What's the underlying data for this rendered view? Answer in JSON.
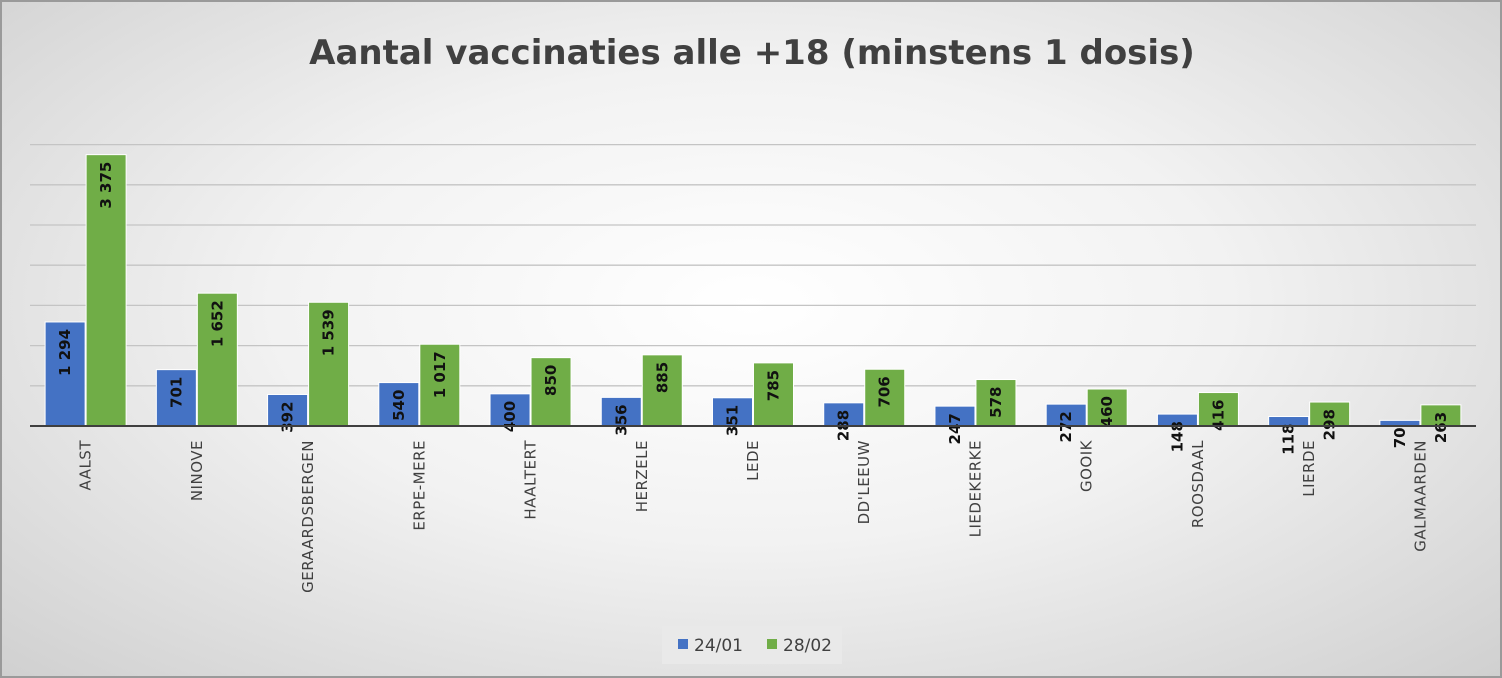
{
  "chart_data": {
    "type": "bar",
    "title": "Aantal vaccinaties alle +18 (minstens 1 dosis)",
    "xlabel": "",
    "ylabel": "",
    "ylim": [
      0,
      3500
    ],
    "grid": true,
    "legend_position": "bottom",
    "categories": [
      "AALST",
      "NINOVE",
      "GERAARDSBERGEN",
      "ERPE-MERE",
      "HAALTERT",
      "HERZELE",
      "LEDE",
      "DD'LEEUW",
      "LIEDEKERKE",
      "GOOIK",
      "ROOSDAAL",
      "LIERDE",
      "GALMAARDEN"
    ],
    "series": [
      {
        "name": "24/01",
        "color": "#4472c4",
        "values": [
          1294,
          701,
          392,
          540,
          400,
          356,
          351,
          288,
          247,
          272,
          148,
          118,
          70
        ],
        "labels": [
          "1 294",
          "701",
          "392",
          "540",
          "400",
          "356",
          "351",
          "288",
          "247",
          "272",
          "148",
          "118",
          "70"
        ]
      },
      {
        "name": "28/02",
        "color": "#70ad47",
        "values": [
          3375,
          1652,
          1539,
          1017,
          850,
          885,
          785,
          706,
          578,
          460,
          416,
          298,
          263
        ],
        "labels": [
          "3 375",
          "1 652",
          "1 539",
          "1 017",
          "850",
          "885",
          "785",
          "706",
          "578",
          "460",
          "416",
          "298",
          "263"
        ]
      }
    ]
  }
}
